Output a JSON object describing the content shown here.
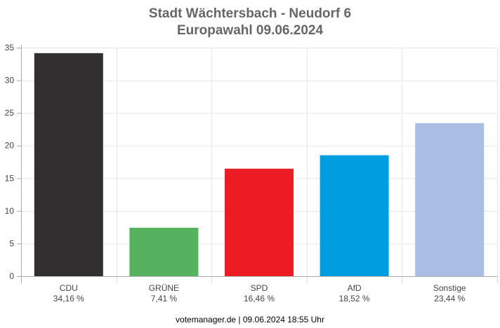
{
  "title_line1": "Stadt Wächtersbach - Neudorf 6",
  "title_line2": "Europawahl 09.06.2024",
  "footer": "votemanager.de | 09.06.2024 18:55 Uhr",
  "chart_data": {
    "type": "bar",
    "title": "Stadt Wächtersbach - Neudorf 6 / Europawahl 09.06.2024",
    "xlabel": "",
    "ylabel": "",
    "ylim": [
      0,
      35
    ],
    "yticks": [
      0,
      5,
      10,
      15,
      20,
      25,
      30,
      35
    ],
    "grid": true,
    "legend": "none",
    "categories": [
      "CDU",
      "GRÜNE",
      "SPD",
      "AfD",
      "Sonstige"
    ],
    "values": [
      34.16,
      7.41,
      16.46,
      18.52,
      23.44
    ],
    "value_labels": [
      "34,16 %",
      "7,41 %",
      "16,46 %",
      "18,52 %",
      "23,44 %"
    ],
    "colors": [
      "#312f30",
      "#56b25e",
      "#ec1c24",
      "#009ee0",
      "#aabee3"
    ]
  }
}
